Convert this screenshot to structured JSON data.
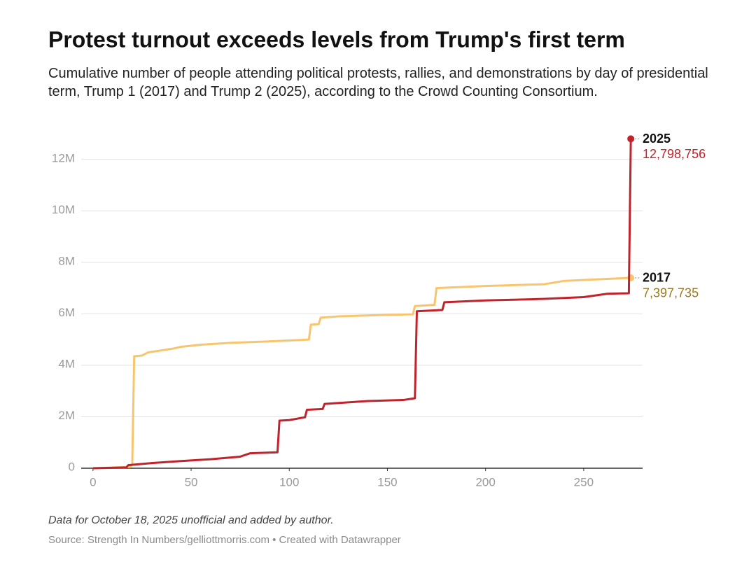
{
  "chart_data": {
    "type": "line",
    "title": "Protest turnout exceeds levels from Trump's first term",
    "subtitle": "Cumulative number of people attending political protests, rallies, and demonstrations by day of presidential term, Trump 1 (2017) and Trump 2 (2025), according to the Crowd Counting Consortium.",
    "note": "Data for October 18, 2025 unofficial and added by author.",
    "source": "Source: Strength In Numbers/gelliottmorris.com • Created with Datawrapper",
    "xlim": [
      -6,
      280
    ],
    "xticks": [
      0,
      50,
      100,
      150,
      200,
      250
    ],
    "ylim": [
      0,
      13000000
    ],
    "yticks": [
      0,
      {
        "value": 2000000,
        "label": "2M"
      },
      {
        "value": 4000000,
        "label": "4M"
      },
      {
        "value": 6000000,
        "label": "6M"
      },
      {
        "value": 8000000,
        "label": "8M"
      },
      {
        "value": 10000000,
        "label": "10M"
      },
      {
        "value": 12000000,
        "label": "12M"
      }
    ],
    "grid": true,
    "series": [
      {
        "name": "2017",
        "color": "#f8c56f",
        "label_color": "#9b7a1c",
        "x": [
          0,
          19,
          20,
          21,
          25,
          28,
          35,
          41,
          45,
          55,
          70,
          90,
          105,
          110,
          111,
          115,
          116,
          125,
          150,
          163,
          164,
          174,
          175,
          200,
          230,
          240,
          260,
          274
        ],
        "values": [
          0,
          50000,
          150000,
          4350000,
          4380000,
          4500000,
          4580000,
          4650000,
          4720000,
          4800000,
          4870000,
          4930000,
          4980000,
          5000000,
          5580000,
          5600000,
          5850000,
          5900000,
          5960000,
          5980000,
          6300000,
          6350000,
          7000000,
          7080000,
          7150000,
          7280000,
          7350000,
          7397735
        ],
        "value_labels": [
          null,
          null,
          null,
          null,
          null,
          null,
          null,
          null,
          null,
          null,
          null,
          null,
          null,
          null,
          null,
          null,
          null,
          null,
          null,
          null,
          null,
          null,
          null,
          null,
          null,
          null,
          null,
          "7,397,735"
        ]
      },
      {
        "name": "2025",
        "color": "#c0232b",
        "label_color": "#c0232b",
        "x": [
          0,
          17,
          18,
          30,
          45,
          60,
          75,
          80,
          94,
          95,
          100,
          108,
          109,
          117,
          118,
          130,
          140,
          158,
          164,
          165,
          178,
          179,
          200,
          230,
          250,
          262,
          273,
          274
        ],
        "values": [
          0,
          30000,
          120000,
          200000,
          280000,
          350000,
          450000,
          580000,
          620000,
          1850000,
          1870000,
          1980000,
          2270000,
          2300000,
          2500000,
          2560000,
          2610000,
          2650000,
          2720000,
          6100000,
          6150000,
          6450000,
          6520000,
          6580000,
          6650000,
          6780000,
          6800000,
          12798756
        ],
        "value_labels": [
          null,
          null,
          null,
          null,
          null,
          null,
          null,
          null,
          null,
          null,
          null,
          null,
          null,
          null,
          null,
          null,
          null,
          null,
          null,
          null,
          null,
          null,
          null,
          null,
          null,
          null,
          null,
          "12,798,756"
        ]
      }
    ]
  }
}
